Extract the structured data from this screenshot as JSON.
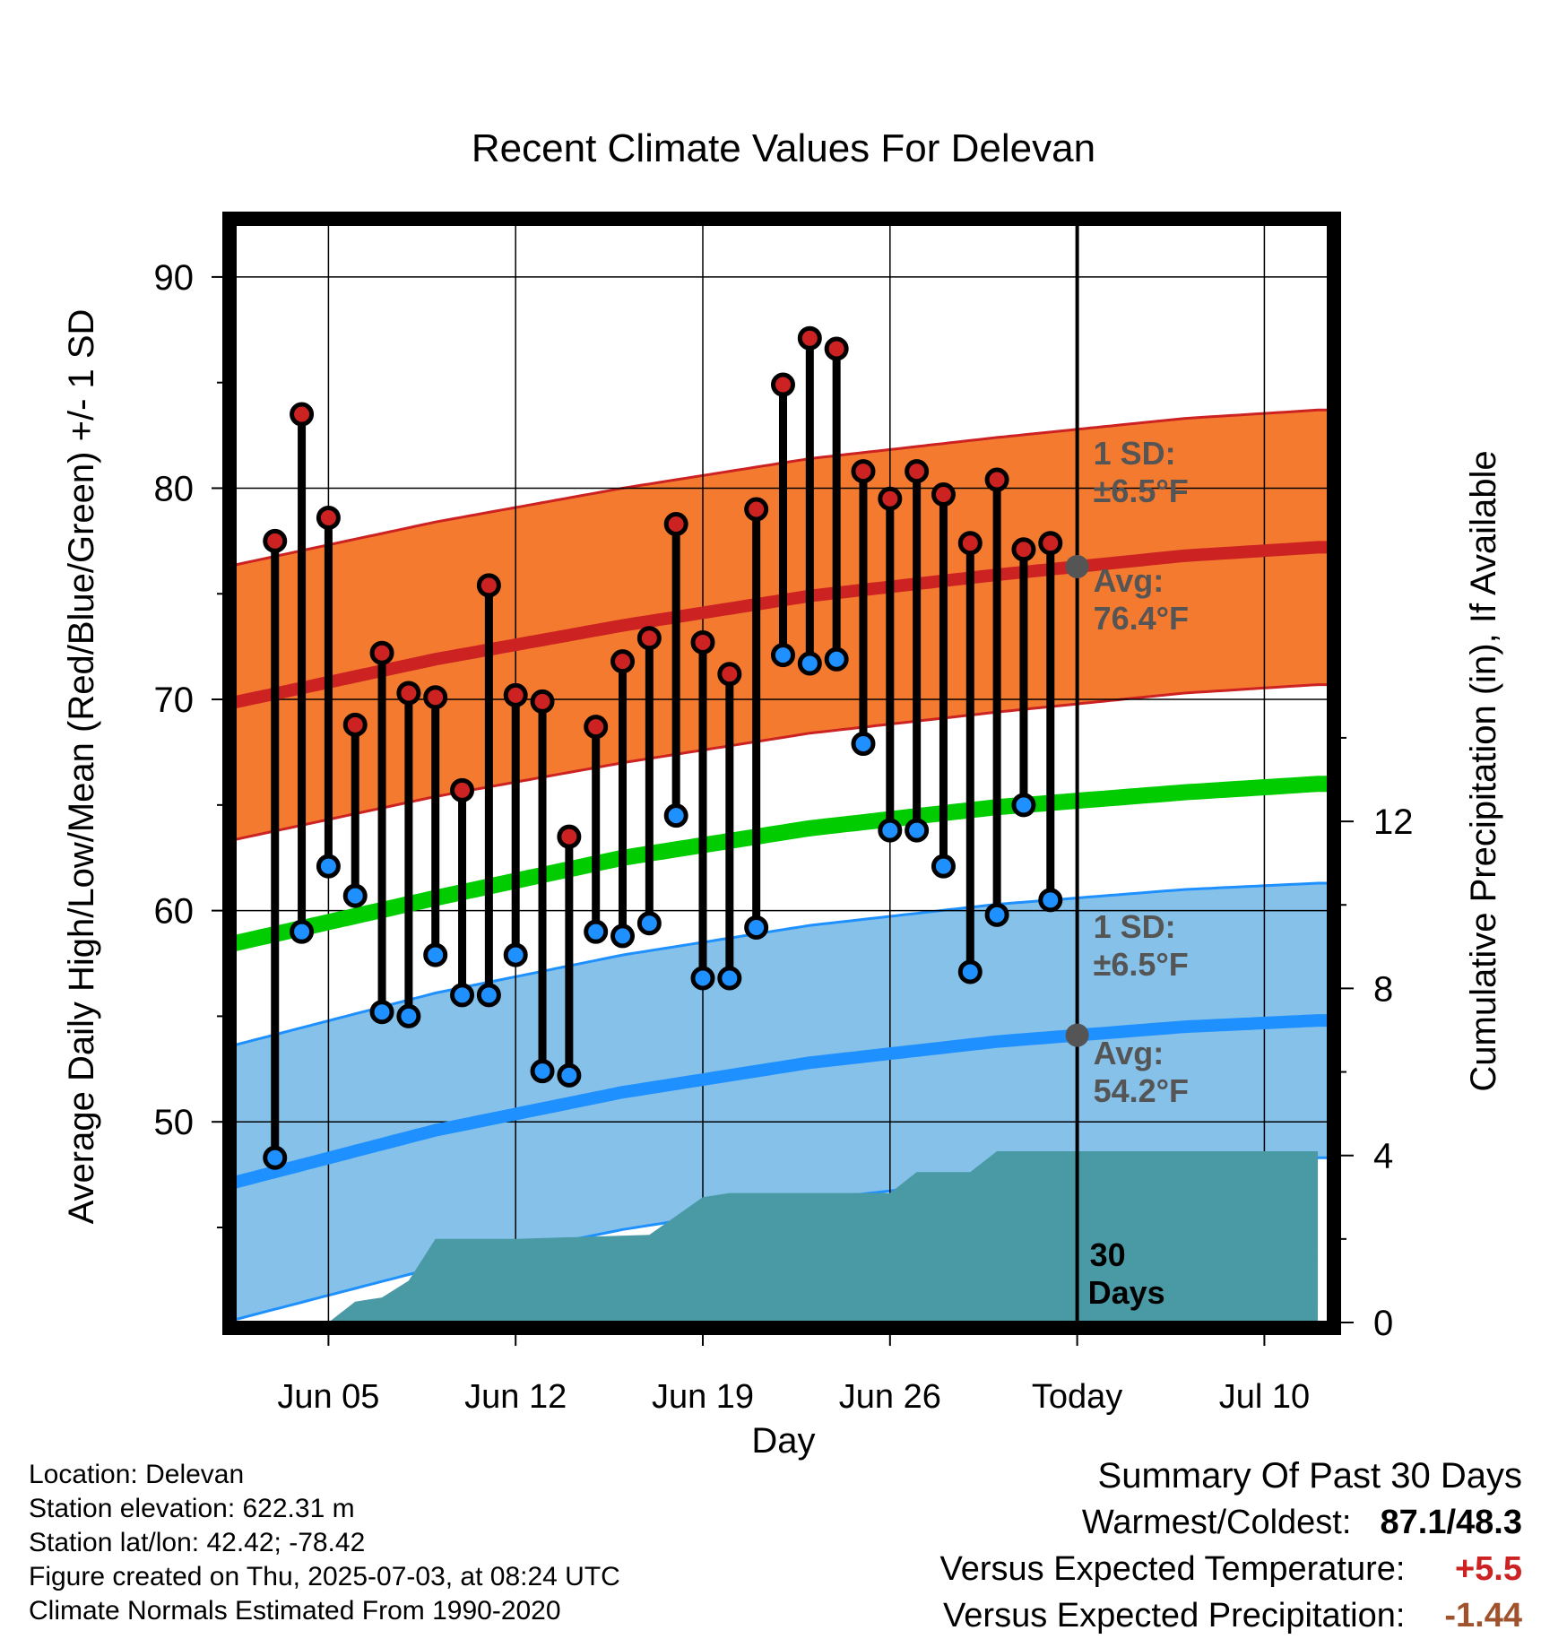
{
  "chart_data": {
    "type": "line",
    "title": "Recent Climate Values For Delevan",
    "xlabel": "Day",
    "ylabel": "Average Daily High/Low/Mean (Red/Blue/Green) +/- 1 SD",
    "ylabel_right": "Cumulative Precipitation (in), If Available",
    "ylim": [
      40.5,
      92.5
    ],
    "ylim_right": [
      0,
      26.3
    ],
    "yticks": [
      50,
      60,
      70,
      80,
      90
    ],
    "yticks_right": [
      0,
      4,
      8,
      12
    ],
    "xticks": [
      "Jun 05",
      "Jun 12",
      "Jun 19",
      "Jun 26",
      "Today",
      "Jul 10"
    ],
    "days": [
      "Jun 03",
      "Jun 04",
      "Jun 05",
      "Jun 06",
      "Jun 07",
      "Jun 08",
      "Jun 09",
      "Jun 10",
      "Jun 11",
      "Jun 12",
      "Jun 13",
      "Jun 14",
      "Jun 15",
      "Jun 16",
      "Jun 17",
      "Jun 18",
      "Jun 19",
      "Jun 20",
      "Jun 21",
      "Jun 22",
      "Jun 23",
      "Jun 24",
      "Jun 25",
      "Jun 26",
      "Jun 27",
      "Jun 28",
      "Jun 29",
      "Jun 30",
      "Jul 01",
      "Jul 02"
    ],
    "highs": [
      77.5,
      83.5,
      78.6,
      68.8,
      72.2,
      70.3,
      70.1,
      65.7,
      75.4,
      70.2,
      69.9,
      63.5,
      68.7,
      71.8,
      72.9,
      78.3,
      72.7,
      71.2,
      79.0,
      84.9,
      87.1,
      86.6,
      80.8,
      79.5,
      80.8,
      79.7,
      77.4,
      80.4,
      77.1,
      77.4
    ],
    "lows": [
      48.3,
      59.0,
      62.1,
      60.7,
      55.2,
      55.0,
      57.9,
      56.0,
      56.0,
      57.9,
      52.4,
      52.2,
      59.0,
      58.8,
      59.4,
      64.5,
      56.8,
      56.8,
      59.2,
      72.1,
      71.7,
      71.9,
      67.9,
      63.8,
      63.8,
      62.1,
      57.1,
      59.8,
      65.0,
      60.5
    ],
    "normals": {
      "x_days": [
        "Jun 02",
        "Jun 09",
        "Jun 16",
        "Jun 23",
        "Jun 30",
        "Jul 07",
        "Jul 12"
      ],
      "avg_high": [
        70.0,
        71.9,
        73.5,
        74.9,
        75.9,
        76.8,
        77.2
      ],
      "avg_low": [
        47.3,
        49.6,
        51.4,
        52.8,
        53.8,
        54.5,
        54.8
      ],
      "avg_mean": [
        58.6,
        60.6,
        62.5,
        63.9,
        64.9,
        65.6,
        66.0
      ],
      "sd_high_label": "1 SD:",
      "sd_high_value": "±6.5°F",
      "avg_high_label": "Avg:",
      "avg_high_value": "76.4°F",
      "sd_low_label": "1 SD:",
      "sd_low_value": "±6.5°F",
      "avg_low_label": "Avg:",
      "avg_low_value": "54.2°F",
      "sd": 6.5
    },
    "precip": {
      "x_days": [
        "Jun 05",
        "Jun 06",
        "Jun 06.5",
        "Jun 07",
        "Jun 08",
        "Jun 09",
        "Jun 12",
        "Jun 17",
        "Jun 19",
        "Jun 20",
        "Jun 26",
        "Jun 27",
        "Jun 29",
        "Jun 30",
        "Jul 12"
      ],
      "cumulative": [
        0.0,
        0.5,
        0.55,
        0.6,
        1.0,
        2.0,
        2.0,
        2.1,
        3.0,
        3.1,
        3.1,
        3.6,
        3.6,
        4.1,
        4.1
      ]
    },
    "period_label_line1": "30",
    "period_label_line2": "Days",
    "grid": true,
    "colors": {
      "high": "#cc2222",
      "low": "#1e90ff",
      "mean": "#00cc00",
      "high_band": "#f47a30",
      "low_band": "#85c1e9",
      "precip": "#4a9aa6",
      "annotation": "#555555"
    }
  },
  "info": {
    "location": "Location: Delevan",
    "elevation": "Station elevation: 622.31 m",
    "latlon": "Station lat/lon: 42.42; -78.42",
    "created": "Figure created on Thu, 2025-07-03, at 08:24 UTC",
    "normals": "Climate Normals Estimated From 1990-2020"
  },
  "summary": {
    "heading": "Summary Of Past 30 Days",
    "warmest_label": "Warmest/Coldest:",
    "warmest_value": "87.1/48.3",
    "temp_label": "Versus Expected Temperature:",
    "temp_value": "+5.5",
    "precip_label": "Versus Expected Precipitation:",
    "precip_value": "-1.44",
    "temp_color": "#cc2222",
    "precip_color": "#a0522d"
  }
}
